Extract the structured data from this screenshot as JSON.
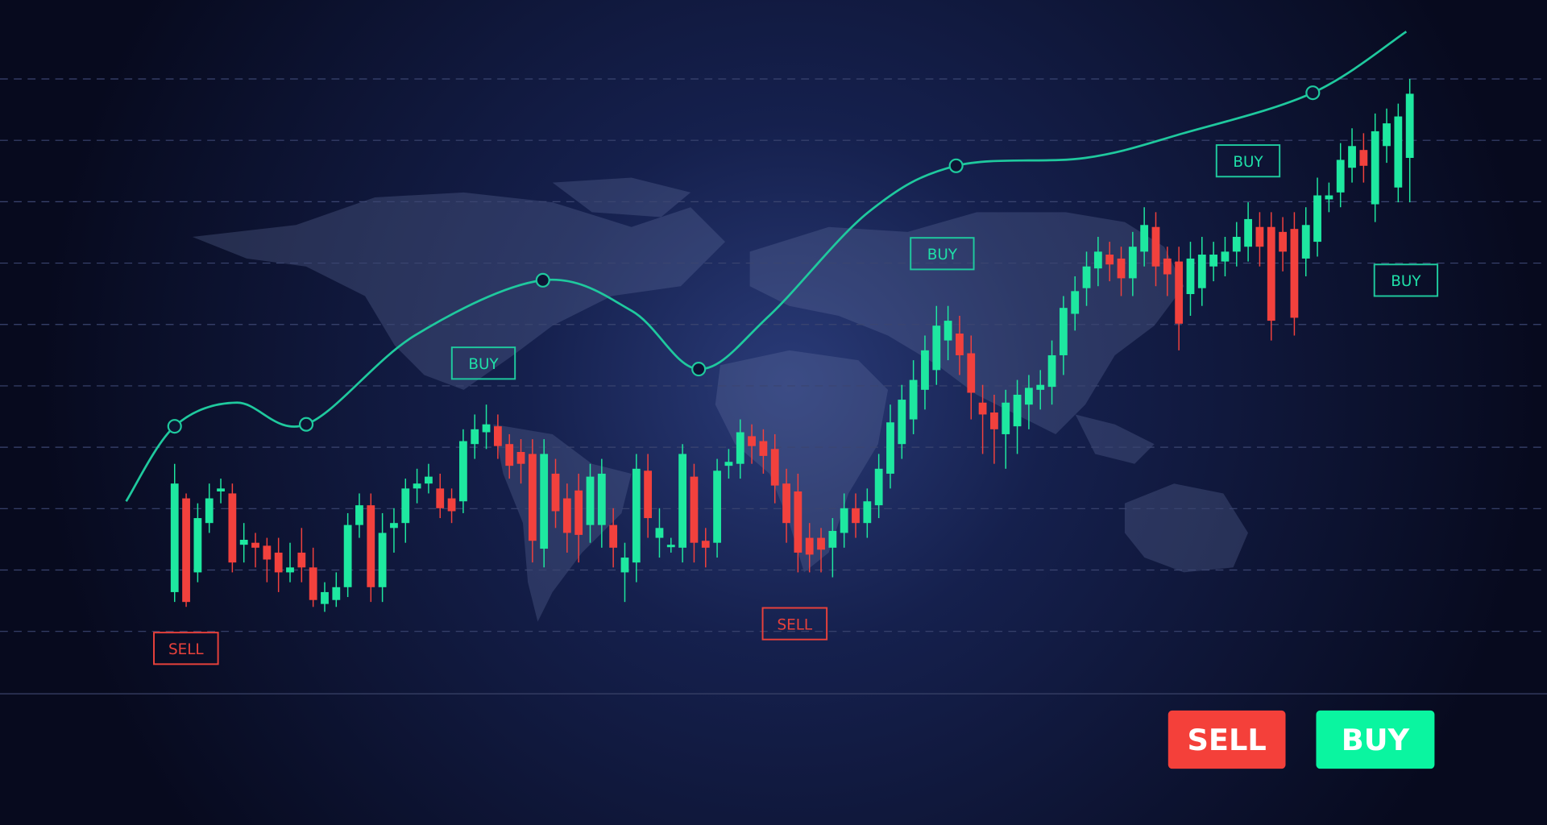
{
  "chart_data": {
    "type": "candlestick",
    "title": "",
    "xlabel": "",
    "ylabel": "",
    "grid": true,
    "grid_style": "dashed horizontal",
    "ylim": [
      -27,
      140
    ],
    "colors": {
      "up": "#1ee8a0",
      "down": "#f2413d",
      "moving_average": "#1fc99e",
      "background": "#0a0e26",
      "glow": "#25366e"
    },
    "candles_ohlc": [
      [
        20,
        46,
        18,
        42
      ],
      [
        39,
        40,
        17,
        18
      ],
      [
        24,
        38,
        22,
        35
      ],
      [
        34,
        42,
        32,
        39
      ],
      [
        40.4,
        43,
        38,
        41
      ],
      [
        40,
        42,
        24,
        26
      ],
      [
        29.6,
        34,
        26,
        30.6
      ],
      [
        30,
        32,
        25,
        29
      ],
      [
        29.4,
        31,
        22,
        26.6
      ],
      [
        28,
        31,
        20,
        24
      ],
      [
        24,
        30,
        22,
        25
      ],
      [
        28,
        33,
        22,
        25
      ],
      [
        25,
        29,
        17,
        18.4
      ],
      [
        17.6,
        22,
        16,
        20
      ],
      [
        18.4,
        24,
        17,
        21
      ],
      [
        21,
        36,
        19,
        33.6
      ],
      [
        33.6,
        40,
        31,
        37.6
      ],
      [
        37.6,
        40,
        18,
        21
      ],
      [
        21,
        36,
        18,
        32
      ],
      [
        33,
        37,
        28,
        34
      ],
      [
        34,
        43,
        30,
        41
      ],
      [
        41,
        45,
        38,
        42
      ],
      [
        42,
        46,
        40,
        43.4
      ],
      [
        41,
        44,
        35,
        37
      ],
      [
        39,
        41,
        34,
        36.4
      ],
      [
        38.4,
        53,
        36,
        50.6
      ],
      [
        50,
        56,
        47,
        53
      ],
      [
        52.4,
        58,
        49,
        54
      ],
      [
        53.6,
        56,
        47,
        49.6
      ],
      [
        50,
        52,
        43,
        45.6
      ],
      [
        48.4,
        51,
        42,
        46
      ],
      [
        48,
        51,
        26,
        30.4
      ],
      [
        28.8,
        51,
        25,
        48
      ],
      [
        44,
        47,
        33,
        36.4
      ],
      [
        39,
        42,
        28,
        32
      ],
      [
        40.6,
        44,
        26,
        31.6
      ],
      [
        33.6,
        46,
        30,
        43.4
      ],
      [
        33.6,
        47,
        29,
        44
      ],
      [
        33.6,
        37,
        25,
        29
      ],
      [
        24,
        30,
        18,
        27
      ],
      [
        26,
        48,
        22,
        45
      ],
      [
        44.6,
        48,
        31,
        35
      ],
      [
        31,
        37,
        27,
        33
      ],
      [
        29.4,
        31,
        28,
        29.6
      ],
      [
        29,
        50,
        26,
        48
      ],
      [
        43.4,
        46,
        26,
        30
      ],
      [
        30.4,
        33,
        25,
        29
      ],
      [
        30,
        47,
        27,
        44.6
      ],
      [
        45.6,
        49,
        43,
        46.4
      ],
      [
        46,
        55,
        43,
        52.4
      ],
      [
        51.6,
        54,
        46,
        49.6
      ],
      [
        50.6,
        53,
        44,
        47.6
      ],
      [
        49,
        52,
        38,
        41.6
      ],
      [
        42,
        45,
        30,
        34
      ],
      [
        40.4,
        44,
        24,
        28
      ],
      [
        31,
        34,
        24,
        27.6
      ],
      [
        31,
        33,
        24,
        28.6
      ],
      [
        29,
        35,
        23,
        32.4
      ],
      [
        32,
        40,
        29,
        37
      ],
      [
        37,
        40,
        31,
        34
      ],
      [
        34,
        41,
        31,
        38.4
      ],
      [
        37.6,
        48,
        35,
        45
      ],
      [
        44,
        58,
        41,
        54.4
      ],
      [
        50,
        62,
        47,
        59
      ],
      [
        55,
        67,
        52,
        63
      ],
      [
        61,
        72,
        57,
        69
      ],
      [
        65,
        78,
        62,
        74
      ],
      [
        71,
        78,
        67,
        75
      ],
      [
        72.4,
        76,
        64,
        68
      ],
      [
        68.4,
        72,
        55,
        60.4
      ],
      [
        58.4,
        62,
        48,
        56
      ],
      [
        56.4,
        60,
        46,
        53
      ],
      [
        52,
        61,
        45,
        58.4
      ],
      [
        53.6,
        63,
        48,
        60
      ],
      [
        58,
        64,
        53,
        61.4
      ],
      [
        61,
        65,
        57,
        62
      ],
      [
        61.6,
        71,
        58,
        68
      ],
      [
        68,
        80,
        64,
        77.6
      ],
      [
        76.4,
        84,
        73,
        81
      ],
      [
        81.6,
        89,
        78,
        86
      ],
      [
        85.6,
        92,
        82,
        89
      ],
      [
        88.4,
        91,
        83,
        86.4
      ],
      [
        87.6,
        90,
        80,
        83.6
      ],
      [
        83.6,
        93,
        80,
        90
      ],
      [
        89,
        98,
        86,
        94.4
      ],
      [
        94,
        97,
        82,
        86
      ],
      [
        87.6,
        90,
        80,
        84.4
      ],
      [
        87,
        90,
        69,
        74.4
      ],
      [
        80.4,
        91,
        76,
        87.6
      ],
      [
        81.6,
        92,
        78,
        88.4
      ],
      [
        86,
        91,
        83,
        88.4
      ],
      [
        87,
        92,
        84,
        89
      ],
      [
        89,
        95,
        86,
        92
      ],
      [
        90,
        99,
        87,
        95.6
      ],
      [
        94,
        97,
        86,
        90
      ],
      [
        94,
        97,
        71,
        75
      ],
      [
        93,
        96,
        85,
        89
      ],
      [
        93.6,
        97,
        72,
        75.6
      ],
      [
        87.6,
        98,
        84,
        94.4
      ],
      [
        91,
        104,
        88,
        100.4
      ],
      [
        99.6,
        103,
        97,
        100.4
      ],
      [
        101,
        111,
        98,
        107.6
      ],
      [
        106,
        114,
        103,
        110.4
      ],
      [
        109.6,
        113,
        103,
        106.4
      ],
      [
        98.6,
        117,
        95,
        113.4
      ],
      [
        110.4,
        118,
        107,
        115
      ],
      [
        102,
        119,
        99,
        116.4
      ],
      [
        108,
        124,
        99,
        121
      ]
    ],
    "moving_average": {
      "points_index_value": [
        [
          -4.2,
          38.4
        ],
        [
          0,
          53.6
        ],
        [
          5.4,
          58.4
        ],
        [
          11.4,
          54
        ],
        [
          20.8,
          72
        ],
        [
          31.9,
          83.2
        ],
        [
          39.6,
          77
        ],
        [
          45.4,
          65.2
        ],
        [
          51.5,
          76
        ],
        [
          60.1,
          97
        ],
        [
          67.7,
          106.4
        ],
        [
          78.9,
          108
        ],
        [
          87.4,
          113
        ],
        [
          98.6,
          121.2
        ],
        [
          106.7,
          133.6
        ]
      ],
      "markers_index_value": [
        [
          0,
          53.6
        ],
        [
          11.4,
          54
        ],
        [
          31.9,
          83.2
        ],
        [
          45.4,
          65.2
        ],
        [
          67.7,
          106.4
        ],
        [
          98.6,
          121.2
        ]
      ]
    },
    "annotations": [
      {
        "label": "SELL",
        "type": "sell"
      },
      {
        "label": "BUY",
        "type": "buy"
      },
      {
        "label": "SELL",
        "type": "sell"
      },
      {
        "label": "BUY",
        "type": "buy"
      },
      {
        "label": "BUY",
        "type": "buy"
      },
      {
        "label": "BUY",
        "type": "buy"
      }
    ]
  },
  "actions": {
    "sell_label": "SELL",
    "buy_label": "BUY",
    "sell_color": "#f4403a",
    "buy_color": "#0af5a0"
  }
}
